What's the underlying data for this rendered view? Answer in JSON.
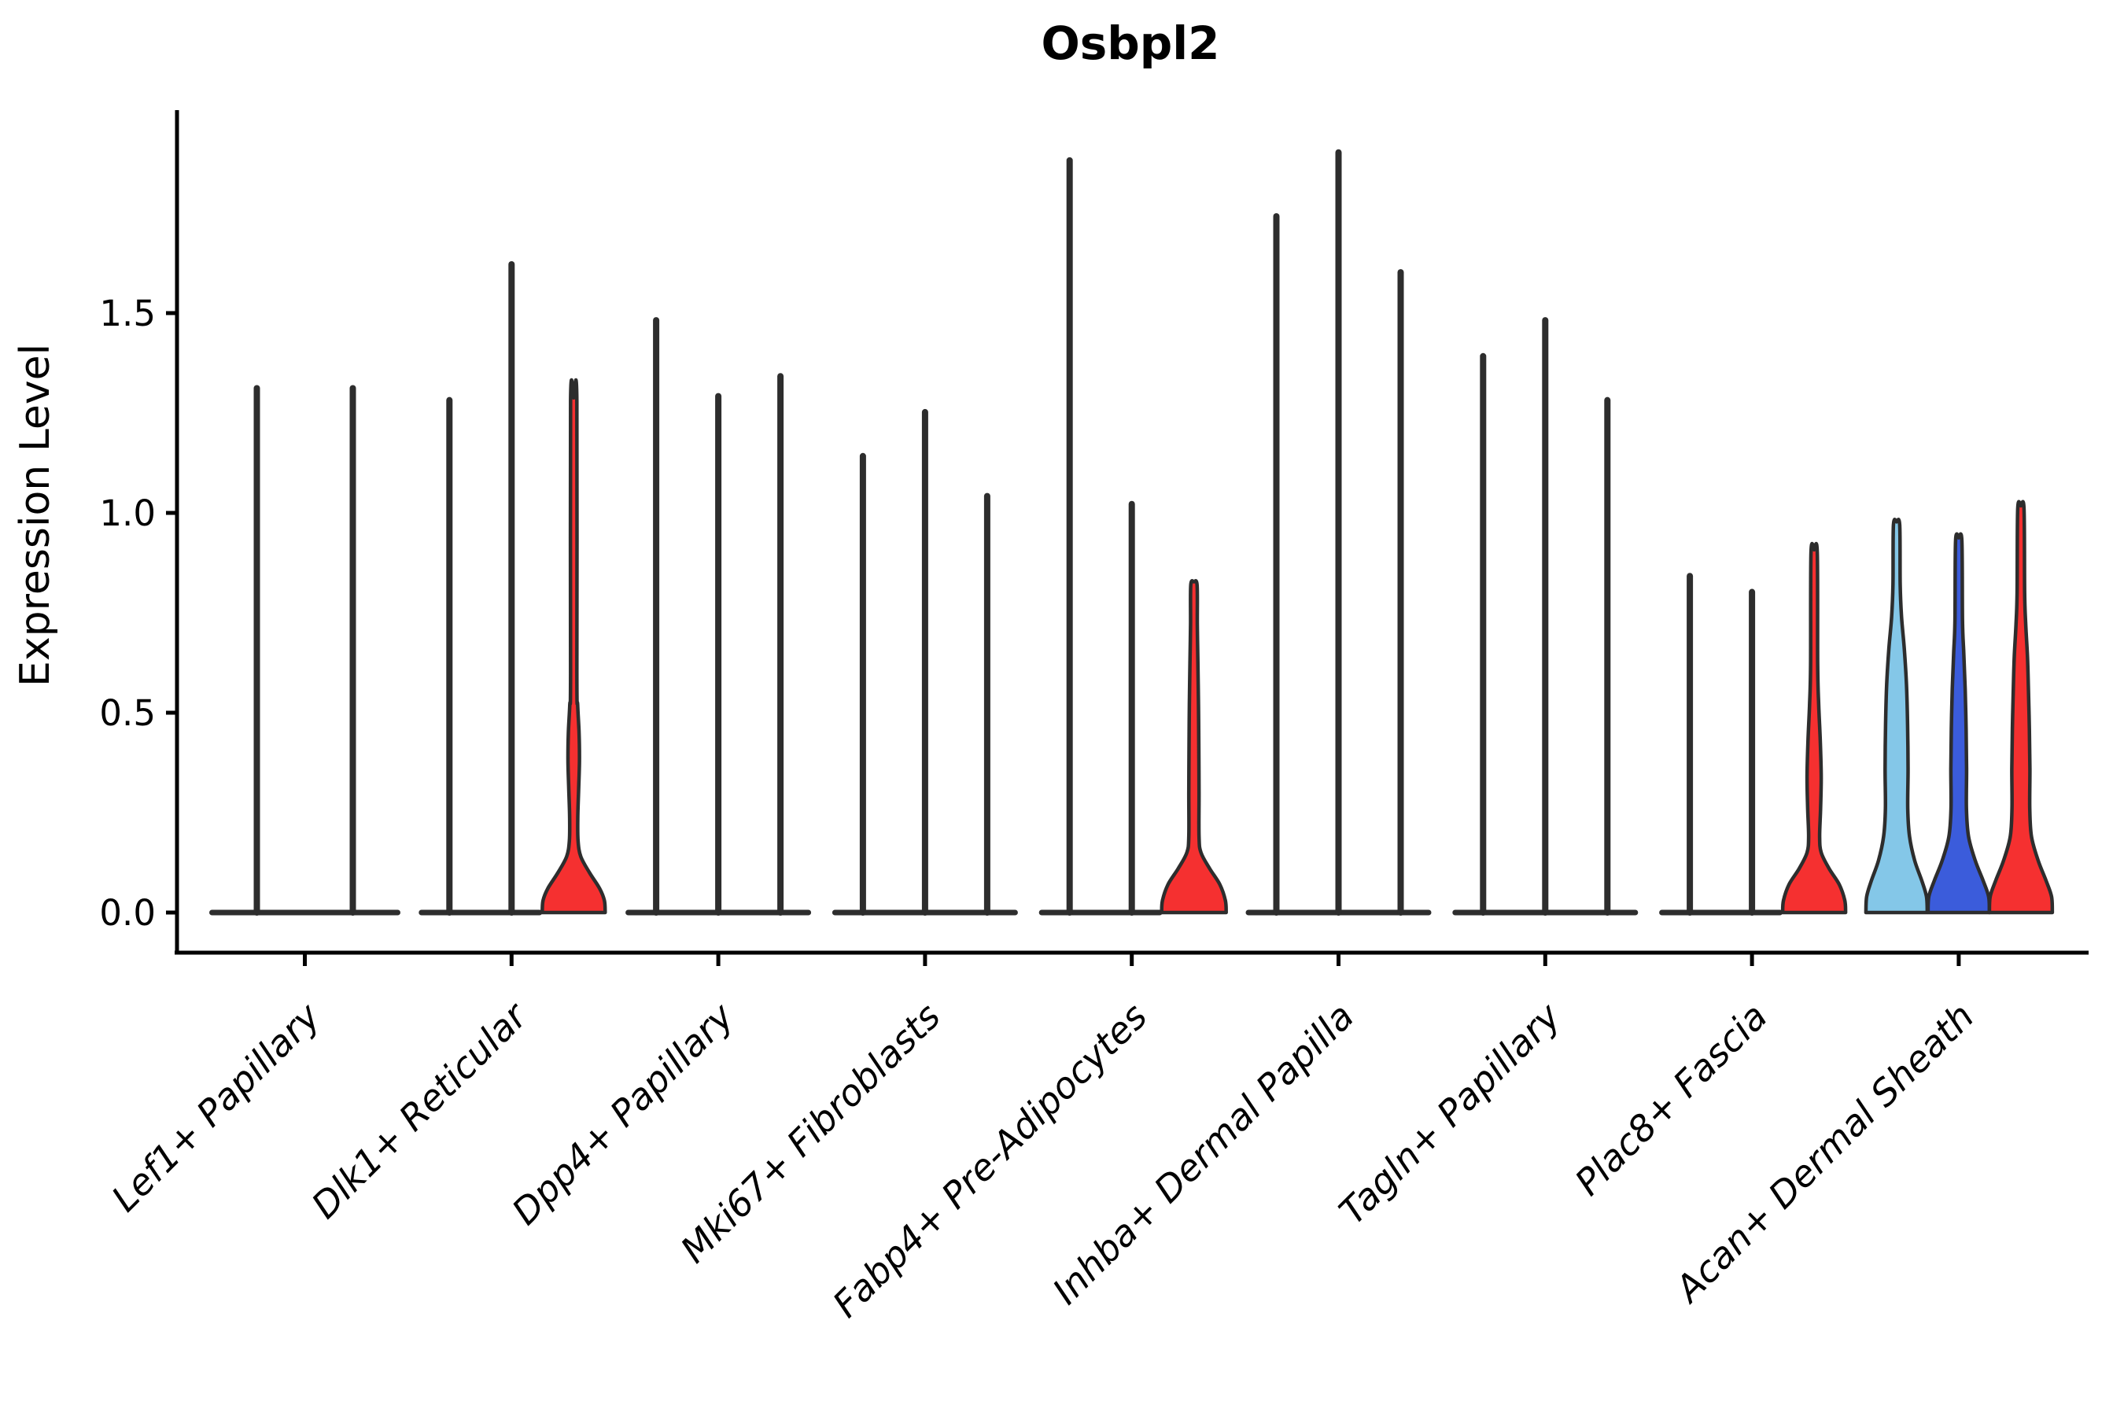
{
  "title": "Osbpl2",
  "axes": {
    "ylabel": "Expression Level",
    "ytick_labels": [
      "0.0",
      "0.5",
      "1.0",
      "1.5"
    ],
    "ytick_values": [
      0.0,
      0.5,
      1.0,
      1.5
    ]
  },
  "colors": {
    "outline": "#2d2d2d",
    "axis": "#000000",
    "red": "#f53030",
    "light_blue": "#84c7e8",
    "royal_blue": "#3b5cdb"
  },
  "chart_data": {
    "type": "violin",
    "title": "Osbpl2",
    "xlabel": "",
    "ylabel": "Expression Level",
    "ylim": [
      -0.05,
      2.0
    ],
    "yticks": [
      0.0,
      0.5,
      1.0,
      1.5
    ],
    "grid": false,
    "legend": "none",
    "categories": [
      "Lef1+ Papillary",
      "Dlk1+ Reticular",
      "Dpp4+ Papillary",
      "Mki67+ Fibroblasts",
      "Fabp4+ Pre-Adipocytes",
      "Inhba+ Dermal Papilla",
      "Tagln+ Papillary",
      "Plac8+ Fascia",
      "Acan+ Dermal Sheath"
    ],
    "groups": [
      {
        "category": "Lef1+ Papillary",
        "violins": [
          {
            "max": 1.32,
            "style": "spike",
            "fill": null
          },
          {
            "max": 1.32,
            "style": "spike",
            "fill": null
          }
        ]
      },
      {
        "category": "Dlk1+ Reticular",
        "violins": [
          {
            "max": 1.29,
            "style": "spike",
            "fill": null
          },
          {
            "max": 1.63,
            "style": "spike",
            "fill": null
          },
          {
            "max": 1.28,
            "style": "density",
            "fill": "red",
            "profile": [
              [
                0,
                40
              ],
              [
                0.03,
                39
              ],
              [
                0.06,
                33
              ],
              [
                0.1,
                20
              ],
              [
                0.14,
                9
              ],
              [
                0.18,
                5.5
              ],
              [
                0.24,
                5.2
              ],
              [
                0.31,
                6.3
              ],
              [
                0.38,
                7.3
              ],
              [
                0.45,
                6.8
              ],
              [
                0.52,
                5
              ],
              [
                0.6,
                4
              ],
              [
                1.28,
                4
              ]
            ]
          }
        ]
      },
      {
        "category": "Dpp4+ Papillary",
        "violins": [
          {
            "max": 1.49,
            "style": "spike",
            "fill": null
          },
          {
            "max": 1.3,
            "style": "spike",
            "fill": null
          },
          {
            "max": 1.35,
            "style": "spike",
            "fill": null
          }
        ]
      },
      {
        "category": "Mki67+ Fibroblasts",
        "violins": [
          {
            "max": 1.15,
            "style": "spike",
            "fill": null
          },
          {
            "max": 1.26,
            "style": "spike",
            "fill": null
          },
          {
            "max": 1.05,
            "style": "spike",
            "fill": null
          }
        ]
      },
      {
        "category": "Fabp4+ Pre-Adipocytes",
        "violins": [
          {
            "max": 1.89,
            "style": "spike",
            "fill": null
          },
          {
            "max": 1.03,
            "style": "spike",
            "fill": null
          },
          {
            "max": 0.82,
            "style": "density",
            "fill": "red",
            "profile": [
              [
                0,
                41
              ],
              [
                0.03,
                40
              ],
              [
                0.07,
                33
              ],
              [
                0.11,
                20
              ],
              [
                0.15,
                9
              ],
              [
                0.19,
                6.5
              ],
              [
                0.3,
                6.5
              ],
              [
                0.42,
                6.2
              ],
              [
                0.52,
                5.8
              ],
              [
                0.63,
                5
              ],
              [
                0.72,
                4.3
              ],
              [
                0.82,
                4
              ]
            ]
          }
        ]
      },
      {
        "category": "Inhba+ Dermal Papilla",
        "violins": [
          {
            "max": 1.75,
            "style": "spike",
            "fill": null
          },
          {
            "max": 1.91,
            "style": "spike",
            "fill": null
          },
          {
            "max": 1.61,
            "style": "spike",
            "fill": null
          }
        ]
      },
      {
        "category": "Tagln+ Papillary",
        "violins": [
          {
            "max": 1.4,
            "style": "spike",
            "fill": null
          },
          {
            "max": 1.49,
            "style": "spike",
            "fill": null
          },
          {
            "max": 1.29,
            "style": "spike",
            "fill": null
          }
        ]
      },
      {
        "category": "Plac8+ Fascia",
        "violins": [
          {
            "max": 0.85,
            "style": "spike",
            "fill": null
          },
          {
            "max": 0.81,
            "style": "spike",
            "fill": null
          },
          {
            "max": 0.9,
            "style": "density",
            "fill": "red",
            "profile": [
              [
                0,
                40
              ],
              [
                0.03,
                39
              ],
              [
                0.07,
                32
              ],
              [
                0.11,
                19
              ],
              [
                0.15,
                9
              ],
              [
                0.19,
                7
              ],
              [
                0.26,
                8.2
              ],
              [
                0.34,
                9
              ],
              [
                0.43,
                7.8
              ],
              [
                0.52,
                5.8
              ],
              [
                0.62,
                4.5
              ],
              [
                0.9,
                4
              ]
            ]
          }
        ]
      },
      {
        "category": "Acan+ Dermal Sheath",
        "violins": [
          {
            "max": 0.97,
            "style": "density",
            "fill": "light_blue",
            "profile": [
              [
                0,
                39
              ],
              [
                0.04,
                38
              ],
              [
                0.08,
                32
              ],
              [
                0.13,
                23
              ],
              [
                0.19,
                16.5
              ],
              [
                0.26,
                14.2
              ],
              [
                0.36,
                14.6
              ],
              [
                0.47,
                14
              ],
              [
                0.57,
                12.6
              ],
              [
                0.66,
                9.8
              ],
              [
                0.74,
                6.3
              ],
              [
                0.82,
                4.6
              ],
              [
                0.97,
                4
              ]
            ]
          },
          {
            "max": 0.93,
            "style": "density",
            "fill": "royal_blue",
            "profile": [
              [
                0,
                39
              ],
              [
                0.04,
                38
              ],
              [
                0.08,
                31
              ],
              [
                0.13,
                21
              ],
              [
                0.19,
                12.5
              ],
              [
                0.26,
                9.8
              ],
              [
                0.36,
                10
              ],
              [
                0.46,
                9.4
              ],
              [
                0.56,
                8.2
              ],
              [
                0.65,
                6.4
              ],
              [
                0.73,
                4.8
              ],
              [
                0.93,
                4
              ]
            ]
          },
          {
            "max": 1.01,
            "style": "density",
            "fill": "red",
            "profile": [
              [
                0,
                40
              ],
              [
                0.04,
                39
              ],
              [
                0.08,
                32
              ],
              [
                0.13,
                22
              ],
              [
                0.19,
                13.5
              ],
              [
                0.26,
                11.3
              ],
              [
                0.36,
                11.5
              ],
              [
                0.46,
                10.8
              ],
              [
                0.56,
                9.6
              ],
              [
                0.64,
                8.4
              ],
              [
                0.72,
                6.2
              ],
              [
                0.8,
                4.8
              ],
              [
                1.01,
                4
              ]
            ]
          }
        ]
      }
    ]
  }
}
